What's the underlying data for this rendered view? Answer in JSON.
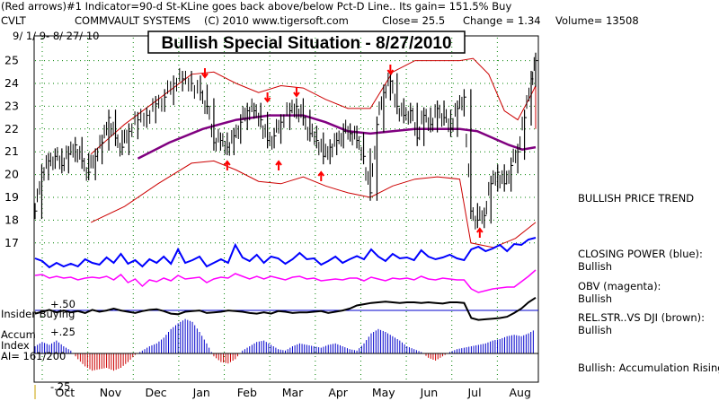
{
  "header": {
    "line1": "(Red arrows)#1 Indicator=90-d St-KLine goes back above/below Pct-D Line.. Its gain= 151.5% Buy",
    "ticker": "CVLT",
    "company": "COMMVAULT SYSTEMS",
    "copyright": "(C) 2010 www.tigersoft.com",
    "close": "Close=  25.5",
    "change": "Change = 1.34",
    "volume": "Volume= 13508",
    "date_range": "9/ 1/ 9- 8/ 27/ 10"
  },
  "title": "Bullish Special Situation - 8/27/2010",
  "left_labels": {
    "insider": "Insider Buying",
    "insider_plus": "+.50",
    "accum_plus": "+.25",
    "accum1": "Accum",
    "accum2": "Index",
    "ai": "AI= 161/200",
    "minus": "-.25"
  },
  "right_notes": {
    "price_trend": "BULLISH PRICE TREND",
    "closing_power": "CLOSING POWER (blue):",
    "closing_power_val": "Bullish",
    "obv": "OBV (magenta):",
    "obv_val": "Bullish",
    "relstr": "REL.STR..VS DJI (brown):",
    "relstr_val": "Bullish",
    "accum": "Bullish: Accumulation Rising"
  },
  "colors": {
    "price": "#000000",
    "bands": "#cc0000",
    "ma": "#800080",
    "closing_power": "#0000ff",
    "obv": "#ff00ff",
    "insider": "#000000",
    "accum_pos": "#0000cc",
    "accum_neg": "#cc0000",
    "arrows": "#ff0000",
    "grid": "#008000"
  },
  "chart_data": {
    "type": "line",
    "title": "Bullish Special Situation - 8/27/2010",
    "xlabel": "",
    "ylabel": "",
    "ylim": [
      16.5,
      25.6
    ],
    "yticks": [
      "25",
      "24",
      "23",
      "22",
      "21",
      "20",
      "19",
      "18",
      "17"
    ],
    "months": [
      "Oct",
      "Nov",
      "Dec",
      "Jan",
      "Feb",
      "Mar",
      "Apr",
      "May",
      "Jun",
      "Jul",
      "Aug"
    ],
    "price_series": [
      {
        "x": 0,
        "y": 18.4
      },
      {
        "x": 0.3,
        "y": 20.1
      },
      {
        "x": 0.6,
        "y": 20.6
      },
      {
        "x": 0.9,
        "y": 20.8
      },
      {
        "x": 1.2,
        "y": 20.4
      },
      {
        "x": 1.5,
        "y": 20.9
      },
      {
        "x": 1.8,
        "y": 21.3
      },
      {
        "x": 2.1,
        "y": 20.6
      },
      {
        "x": 2.4,
        "y": 20.1
      },
      {
        "x": 2.7,
        "y": 20.8
      },
      {
        "x": 3.0,
        "y": 21.4
      },
      {
        "x": 3.3,
        "y": 22.5
      },
      {
        "x": 3.6,
        "y": 21.6
      },
      {
        "x": 3.9,
        "y": 21.2
      },
      {
        "x": 4.2,
        "y": 21.9
      },
      {
        "x": 4.6,
        "y": 22.4
      },
      {
        "x": 5.0,
        "y": 22.6
      },
      {
        "x": 5.4,
        "y": 23.1
      },
      {
        "x": 5.8,
        "y": 23.4
      },
      {
        "x": 6.2,
        "y": 24.0
      },
      {
        "x": 6.6,
        "y": 24.2
      },
      {
        "x": 7.0,
        "y": 24.0
      },
      {
        "x": 7.4,
        "y": 23.6
      },
      {
        "x": 7.7,
        "y": 23.0
      },
      {
        "x": 8.0,
        "y": 21.4
      },
      {
        "x": 8.3,
        "y": 21.5
      },
      {
        "x": 8.6,
        "y": 21.2
      },
      {
        "x": 8.9,
        "y": 21.7
      },
      {
        "x": 9.2,
        "y": 22.3
      },
      {
        "x": 9.5,
        "y": 22.8
      },
      {
        "x": 9.8,
        "y": 22.8
      },
      {
        "x": 10.1,
        "y": 22.4
      },
      {
        "x": 10.4,
        "y": 21.5
      },
      {
        "x": 10.7,
        "y": 21.7
      },
      {
        "x": 11.0,
        "y": 22.3
      },
      {
        "x": 11.4,
        "y": 22.8
      },
      {
        "x": 11.7,
        "y": 23.0
      },
      {
        "x": 12.0,
        "y": 22.5
      },
      {
        "x": 12.3,
        "y": 21.8
      },
      {
        "x": 12.6,
        "y": 21.5
      },
      {
        "x": 12.9,
        "y": 20.8
      },
      {
        "x": 13.2,
        "y": 21.2
      },
      {
        "x": 13.5,
        "y": 21.5
      },
      {
        "x": 13.8,
        "y": 21.9
      },
      {
        "x": 14.1,
        "y": 21.8
      },
      {
        "x": 14.4,
        "y": 21.5
      },
      {
        "x": 14.7,
        "y": 20.8
      },
      {
        "x": 15.0,
        "y": 19.2
      },
      {
        "x": 15.3,
        "y": 22.2
      },
      {
        "x": 15.6,
        "y": 23.6
      },
      {
        "x": 15.9,
        "y": 24.1
      },
      {
        "x": 16.2,
        "y": 23.0
      },
      {
        "x": 16.5,
        "y": 22.6
      },
      {
        "x": 16.8,
        "y": 22.8
      },
      {
        "x": 17.1,
        "y": 21.6
      },
      {
        "x": 17.4,
        "y": 22.6
      },
      {
        "x": 17.7,
        "y": 22.2
      },
      {
        "x": 18.0,
        "y": 22.9
      },
      {
        "x": 18.3,
        "y": 22.5
      },
      {
        "x": 18.6,
        "y": 22.0
      },
      {
        "x": 18.9,
        "y": 22.9
      },
      {
        "x": 19.2,
        "y": 23.4
      },
      {
        "x": 19.5,
        "y": 18.4
      },
      {
        "x": 19.8,
        "y": 18.0
      },
      {
        "x": 20.1,
        "y": 18.2
      },
      {
        "x": 20.4,
        "y": 19.6
      },
      {
        "x": 20.7,
        "y": 20.1
      },
      {
        "x": 21.0,
        "y": 19.6
      },
      {
        "x": 21.3,
        "y": 20.4
      },
      {
        "x": 21.6,
        "y": 21.0
      },
      {
        "x": 21.9,
        "y": 22.5
      },
      {
        "x": 22.2,
        "y": 24.2
      },
      {
        "x": 22.4,
        "y": 25.0
      }
    ],
    "moving_average": [
      {
        "x": 4.6,
        "y": 20.7
      },
      {
        "x": 6,
        "y": 21.4
      },
      {
        "x": 7.5,
        "y": 22.0
      },
      {
        "x": 9,
        "y": 22.4
      },
      {
        "x": 10.5,
        "y": 22.6
      },
      {
        "x": 12,
        "y": 22.6
      },
      {
        "x": 13,
        "y": 22.3
      },
      {
        "x": 14,
        "y": 21.9
      },
      {
        "x": 15,
        "y": 21.8
      },
      {
        "x": 16,
        "y": 21.9
      },
      {
        "x": 17,
        "y": 22.0
      },
      {
        "x": 18,
        "y": 22.0
      },
      {
        "x": 19,
        "y": 22.0
      },
      {
        "x": 19.8,
        "y": 21.9
      },
      {
        "x": 20.5,
        "y": 21.6
      },
      {
        "x": 21.2,
        "y": 21.3
      },
      {
        "x": 21.8,
        "y": 21.1
      },
      {
        "x": 22.4,
        "y": 21.2
      }
    ],
    "upper_band": [
      {
        "x": 2.5,
        "y": 20.9
      },
      {
        "x": 4,
        "y": 22.2
      },
      {
        "x": 5.5,
        "y": 23.3
      },
      {
        "x": 7,
        "y": 24.4
      },
      {
        "x": 8,
        "y": 24.5
      },
      {
        "x": 9,
        "y": 24.0
      },
      {
        "x": 10,
        "y": 23.6
      },
      {
        "x": 11,
        "y": 23.9
      },
      {
        "x": 12,
        "y": 23.8
      },
      {
        "x": 13,
        "y": 23.3
      },
      {
        "x": 14,
        "y": 22.9
      },
      {
        "x": 15,
        "y": 22.9
      },
      {
        "x": 16,
        "y": 24.5
      },
      {
        "x": 17,
        "y": 25.0
      },
      {
        "x": 18,
        "y": 25.0
      },
      {
        "x": 19,
        "y": 25.0
      },
      {
        "x": 19.6,
        "y": 25.1
      },
      {
        "x": 20.3,
        "y": 24.4
      },
      {
        "x": 21,
        "y": 22.8
      },
      {
        "x": 21.6,
        "y": 22.4
      },
      {
        "x": 22.2,
        "y": 23.5
      },
      {
        "x": 22.4,
        "y": 23.9
      }
    ],
    "lower_band": [
      {
        "x": 2.5,
        "y": 17.9
      },
      {
        "x": 4,
        "y": 18.6
      },
      {
        "x": 5.5,
        "y": 19.6
      },
      {
        "x": 7,
        "y": 20.5
      },
      {
        "x": 8,
        "y": 20.6
      },
      {
        "x": 9,
        "y": 20.2
      },
      {
        "x": 10,
        "y": 19.7
      },
      {
        "x": 11,
        "y": 19.6
      },
      {
        "x": 12,
        "y": 19.9
      },
      {
        "x": 13,
        "y": 19.5
      },
      {
        "x": 14,
        "y": 19.2
      },
      {
        "x": 15,
        "y": 19.0
      },
      {
        "x": 16,
        "y": 19.5
      },
      {
        "x": 17,
        "y": 19.8
      },
      {
        "x": 18,
        "y": 19.9
      },
      {
        "x": 19,
        "y": 19.8
      },
      {
        "x": 19.5,
        "y": 17.0
      },
      {
        "x": 20.5,
        "y": 16.8
      },
      {
        "x": 21.5,
        "y": 17.2
      },
      {
        "x": 22.4,
        "y": 17.9
      }
    ],
    "closing_power": [
      0.6,
      0.66,
      0.8,
      0.7,
      0.78,
      0.72,
      0.78,
      0.62,
      0.7,
      0.74,
      0.58,
      0.7,
      0.5,
      0.72,
      0.64,
      0.78,
      0.62,
      0.7,
      0.56,
      0.72,
      0.4,
      0.7,
      0.64,
      0.56,
      0.78,
      0.7,
      0.62,
      0.7,
      0.3,
      0.58,
      0.66,
      0.52,
      0.7,
      0.56,
      0.6,
      0.72,
      0.62,
      0.48,
      0.62,
      0.6,
      0.74,
      0.66,
      0.56,
      0.7,
      0.62,
      0.55,
      0.62,
      0.4,
      0.56,
      0.66,
      0.5,
      0.6,
      0.58,
      0.64,
      0.42,
      0.56,
      0.62,
      0.58,
      0.52,
      0.6,
      0.64,
      0.4,
      0.34,
      0.44,
      0.38,
      0.3,
      0.44,
      0.28,
      0.3,
      0.18,
      0.14
    ],
    "obv": [
      0.5,
      0.48,
      0.56,
      0.52,
      0.56,
      0.54,
      0.6,
      0.56,
      0.54,
      0.56,
      0.52,
      0.6,
      0.48,
      0.66,
      0.58,
      0.74,
      0.6,
      0.64,
      0.56,
      0.62,
      0.5,
      0.58,
      0.56,
      0.54,
      0.66,
      0.58,
      0.54,
      0.56,
      0.46,
      0.52,
      0.58,
      0.52,
      0.58,
      0.52,
      0.56,
      0.6,
      0.54,
      0.52,
      0.58,
      0.56,
      0.62,
      0.6,
      0.58,
      0.6,
      0.56,
      0.56,
      0.62,
      0.54,
      0.58,
      0.62,
      0.56,
      0.58,
      0.56,
      0.6,
      0.52,
      0.58,
      0.6,
      0.56,
      0.58,
      0.6,
      0.6,
      0.8,
      0.88,
      0.84,
      0.8,
      0.78,
      0.76,
      0.76,
      0.64,
      0.52,
      0.38
    ],
    "insider": [
      0.56,
      0.5,
      0.44,
      0.52,
      0.46,
      0.52,
      0.48,
      0.54,
      0.44,
      0.5,
      0.46,
      0.4,
      0.46,
      0.5,
      0.54,
      0.48,
      0.44,
      0.42,
      0.48,
      0.56,
      0.58,
      0.5,
      0.48,
      0.46,
      0.54,
      0.52,
      0.5,
      0.46,
      0.48,
      0.5,
      0.54,
      0.56,
      0.52,
      0.56,
      0.48,
      0.5,
      0.54,
      0.52,
      0.52,
      0.5,
      0.48,
      0.54,
      0.5,
      0.46,
      0.4,
      0.3,
      0.26,
      0.22,
      0.2,
      0.18,
      0.2,
      0.22,
      0.2,
      0.2,
      0.22,
      0.2,
      0.22,
      0.24,
      0.2,
      0.2,
      0.22,
      0.7,
      0.76,
      0.74,
      0.72,
      0.7,
      0.66,
      0.54,
      0.4,
      0.2,
      0.05
    ],
    "accum_bars": [
      0.1,
      0.16,
      0.12,
      0.18,
      0.1,
      0.04,
      -0.08,
      -0.18,
      -0.24,
      -0.22,
      -0.2,
      -0.24,
      -0.2,
      -0.12,
      -0.02,
      0.04,
      0.1,
      0.14,
      0.22,
      0.34,
      0.42,
      0.48,
      0.44,
      0.3,
      0.14,
      -0.04,
      -0.12,
      -0.14,
      -0.08,
      0.04,
      0.1,
      0.16,
      0.18,
      0.12,
      0.06,
      0.04,
      0.1,
      0.14,
      0.12,
      0.1,
      0.08,
      0.12,
      0.14,
      0.1,
      0.06,
      0.04,
      0.14,
      0.28,
      0.34,
      0.3,
      0.24,
      0.18,
      0.1,
      0.06,
      0.02,
      -0.06,
      -0.1,
      -0.04,
      0.02,
      0.06,
      0.08,
      0.1,
      0.12,
      0.14,
      0.18,
      0.2,
      0.24,
      0.26,
      0.24,
      0.28,
      0.34
    ]
  }
}
